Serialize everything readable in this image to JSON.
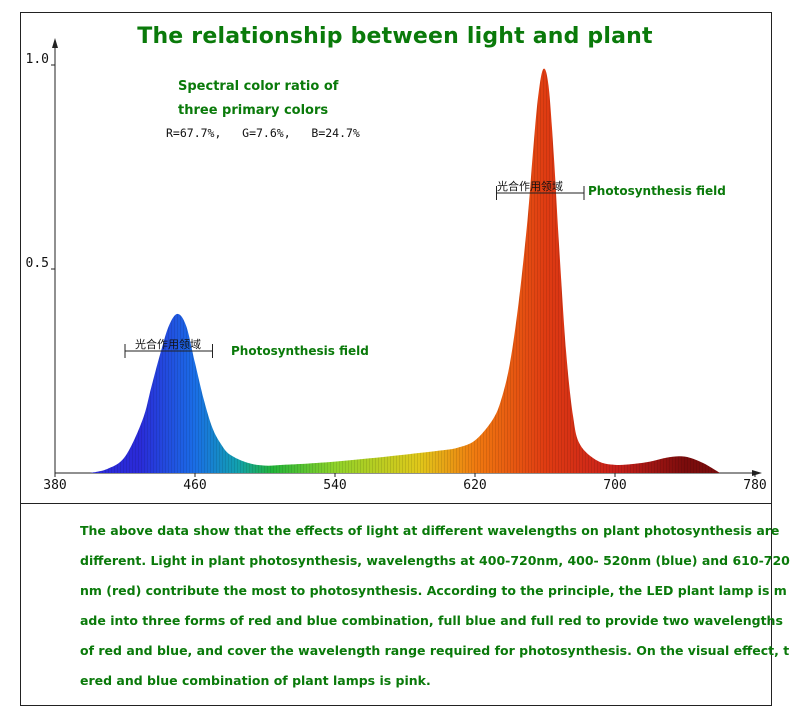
{
  "chart_data": {
    "type": "area",
    "title": "The relationship between light and plant",
    "xlim": [
      380,
      780
    ],
    "ylim": [
      0,
      1.0
    ],
    "x_ticks": [
      380,
      460,
      540,
      620,
      700,
      780
    ],
    "x_tick_labels": [
      "380",
      "460",
      "540",
      "620",
      "700",
      "780"
    ],
    "y_ticks": [
      0.5,
      1.0
    ],
    "y_tick_labels": [
      "0.5",
      "1.0"
    ],
    "grid": false,
    "legend": "none",
    "x": [
      400,
      410,
      420,
      430,
      435,
      440,
      445,
      450,
      455,
      460,
      465,
      470,
      475,
      480,
      490,
      500,
      510,
      520,
      540,
      560,
      580,
      600,
      610,
      620,
      630,
      635,
      640,
      645,
      650,
      653,
      656,
      659,
      662,
      665,
      668,
      672,
      676,
      680,
      690,
      700,
      710,
      720,
      730,
      740,
      750,
      760
    ],
    "values": [
      0.0,
      0.01,
      0.04,
      0.13,
      0.21,
      0.29,
      0.36,
      0.39,
      0.36,
      0.27,
      0.18,
      0.11,
      0.07,
      0.045,
      0.025,
      0.018,
      0.02,
      0.022,
      0.028,
      0.036,
      0.045,
      0.055,
      0.062,
      0.08,
      0.13,
      0.18,
      0.27,
      0.42,
      0.62,
      0.78,
      0.92,
      0.99,
      0.95,
      0.78,
      0.56,
      0.3,
      0.14,
      0.07,
      0.03,
      0.02,
      0.022,
      0.028,
      0.038,
      0.04,
      0.025,
      0.0
    ]
  },
  "ratio": {
    "title_line1": "Spectral color ratio of",
    "title_line2": "three primary colors",
    "values": "R=67.7%,   G=7.6%,   B=24.7%"
  },
  "annotations": [
    {
      "cn": "光合作用领域",
      "en": "Photosynthesis field",
      "range": [
        420,
        470
      ]
    },
    {
      "cn": "光合作用领域",
      "en": "Photosynthesis field",
      "range": [
        630,
        680
      ]
    }
  ],
  "description": [
    "The above data show that the effects of light at different wavelengths on plant photosynthesis are",
    "different. Light in plant photosynthesis, wavelengths at 400-720nm, 400- 520nm (blue) and 610-720",
    "nm (red) contribute the most to photosynthesis. According to the principle, the LED plant lamp is m",
    "ade into three forms of red and blue combination, full blue and full red to provide two wavelengths",
    "of red and blue, and cover the wavelength range required for photosynthesis. On the visual effect, th",
    "ered and blue combination of plant lamps is pink."
  ],
  "colors": {
    "accent_green": "#0a7a0a",
    "spectrum_stops": [
      "#2a2ad8",
      "#1a6ee6",
      "#12a0b0",
      "#22b43a",
      "#8fd22a",
      "#e0c81a",
      "#f07a10",
      "#e03c12",
      "#c8201a",
      "#7a0c0c"
    ]
  }
}
